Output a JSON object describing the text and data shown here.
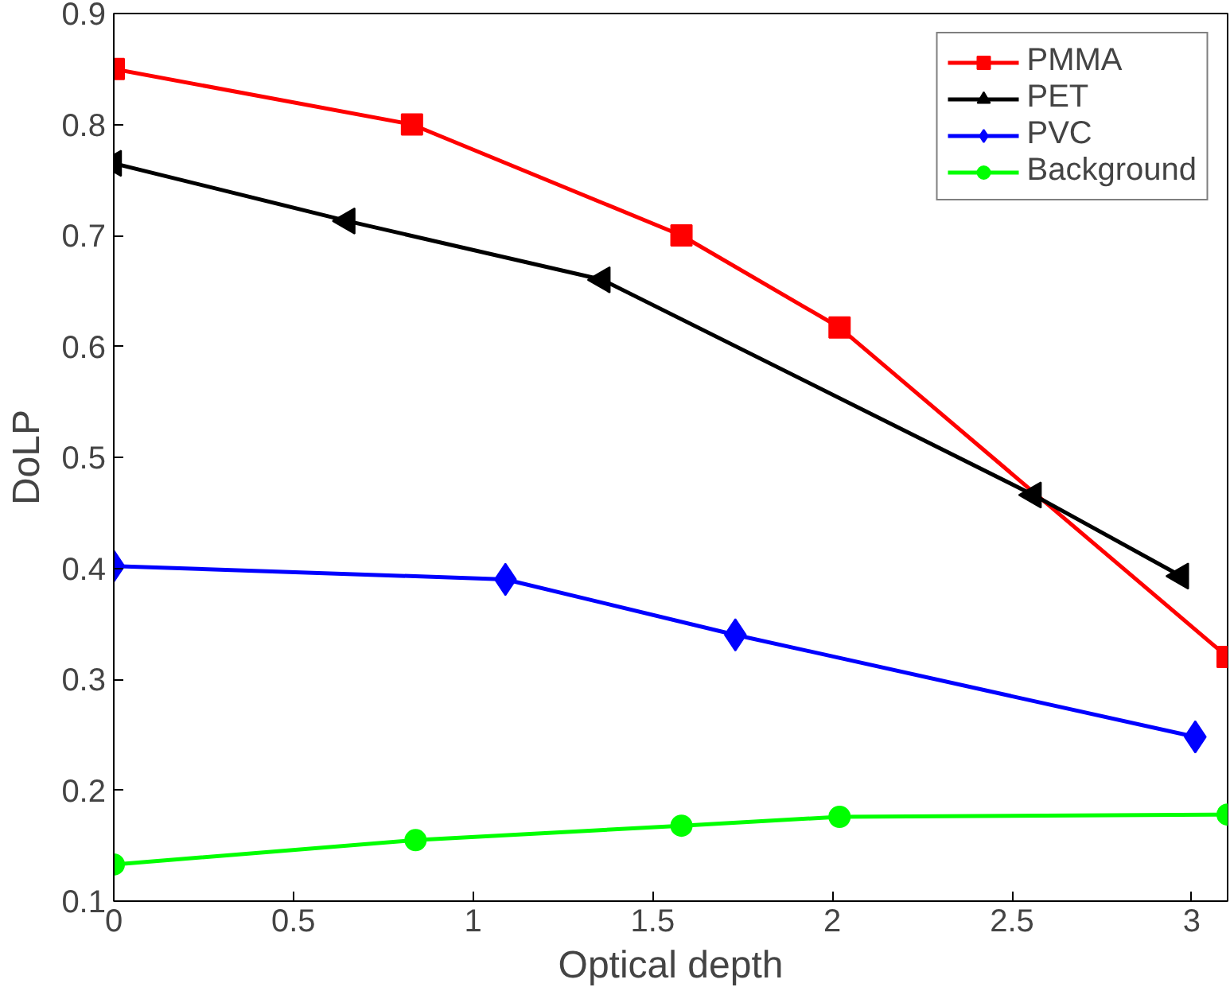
{
  "chart_data": {
    "type": "line",
    "xlabel": "Optical depth",
    "ylabel": "DoLP",
    "xlim": [
      0,
      3.1
    ],
    "ylim": [
      0.1,
      0.9
    ],
    "xticks": [
      0,
      0.5,
      1,
      1.5,
      2,
      2.5,
      3
    ],
    "yticks": [
      0.1,
      0.2,
      0.3,
      0.4,
      0.5,
      0.6,
      0.7,
      0.8,
      0.9
    ],
    "grid": false,
    "legend": "top right",
    "line_style": "solid",
    "series": [
      {
        "name": "PMMA",
        "color": "#ff0000",
        "marker": "square",
        "x": [
          0,
          0.83,
          1.58,
          2.02,
          3.1
        ],
        "values": [
          0.85,
          0.8,
          0.7,
          0.617,
          0.32
        ]
      },
      {
        "name": "PET",
        "color": "#000000",
        "marker": "triangle",
        "x": [
          0,
          0.65,
          1.36,
          2.56,
          2.97
        ],
        "values": [
          0.765,
          0.713,
          0.66,
          0.466,
          0.393
        ]
      },
      {
        "name": "PVC",
        "color": "#0000ff",
        "marker": "diamond",
        "x": [
          0,
          1.09,
          1.73,
          3.01
        ],
        "values": [
          0.402,
          0.39,
          0.34,
          0.248
        ]
      },
      {
        "name": "Background",
        "color": "#00ff00",
        "marker": "circle",
        "x": [
          0,
          0.84,
          1.58,
          2.02,
          3.1
        ],
        "values": [
          0.133,
          0.155,
          0.168,
          0.176,
          0.178
        ]
      }
    ]
  }
}
